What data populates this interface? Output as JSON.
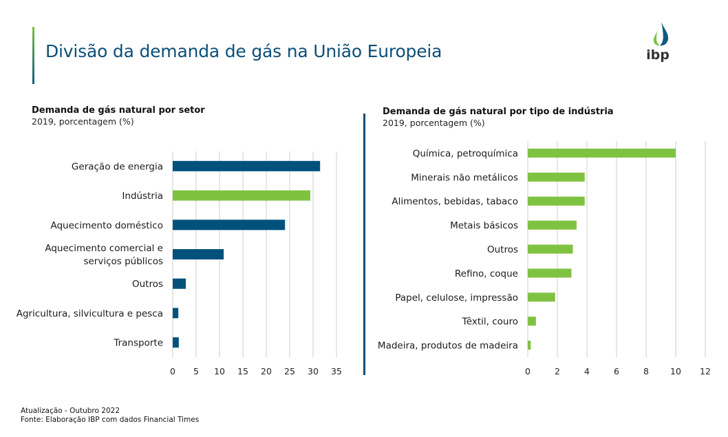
{
  "header": {
    "title": "Divisão da demanda de gás na União Europeia",
    "logo_text": "ibp"
  },
  "colors": {
    "dark_blue": "#00527c",
    "green": "#7fc242",
    "grid": "#d9d9d9",
    "title": "#0b4f78"
  },
  "footer": {
    "update": "Atualização - Outubro 2022",
    "source": "Fonte: Elaboração IBP com dados Financial Times"
  },
  "chart_data": [
    {
      "type": "bar",
      "orientation": "horizontal",
      "title": "Demanda de gás natural por setor",
      "subtitle": "2019, porcentagem (%)",
      "xlabel": "",
      "ylabel": "",
      "categories": [
        "Geração de energia",
        "Indústria",
        "Aquecimento doméstico",
        "Aquecimento comercial e serviços públicos",
        "Outros",
        "Agricultura, silvicultura e pesca",
        "Transporte"
      ],
      "category_lines": [
        [
          "Geração de energia"
        ],
        [
          "Indústria"
        ],
        [
          "Aquecimento doméstico"
        ],
        [
          "Aquecimento comercial e",
          "serviços públicos"
        ],
        [
          "Outros"
        ],
        [
          "Agricultura, silvicultura e pesca"
        ],
        [
          "Transporte"
        ]
      ],
      "values": [
        31.5,
        29.4,
        24.0,
        10.9,
        2.8,
        1.2,
        1.3
      ],
      "bar_colors": [
        "#00527c",
        "#7fc242",
        "#00527c",
        "#00527c",
        "#00527c",
        "#00527c",
        "#00527c"
      ],
      "xlim": [
        0,
        35
      ],
      "xticks": [
        0,
        5,
        10,
        15,
        20,
        25,
        30,
        35
      ],
      "grid": true,
      "legend": "none"
    },
    {
      "type": "bar",
      "orientation": "horizontal",
      "title": "Demanda de gás natural por tipo de indústria",
      "subtitle": "2019, porcentagem (%)",
      "xlabel": "",
      "ylabel": "",
      "categories": [
        "Química, petroquímica",
        "Minerais não metálicos",
        "Alimentos, bebidas, tabaco",
        "Metais básicos",
        "Outros",
        "Refino, coque",
        "Papel, celulose, impressão",
        "Têxtil, couro",
        "Madeira, produtos de madeira"
      ],
      "category_lines": [
        [
          "Química, petroquímica"
        ],
        [
          "Minerais não metálicos"
        ],
        [
          "Alimentos, bebidas, tabaco"
        ],
        [
          "Metais básicos"
        ],
        [
          "Outros"
        ],
        [
          "Refino, coque"
        ],
        [
          "Papel, celulose, impressão"
        ],
        [
          "Têxtil, couro"
        ],
        [
          "Madeira, produtos de madeira"
        ]
      ],
      "values": [
        10.0,
        3.85,
        3.85,
        3.3,
        3.05,
        2.95,
        1.85,
        0.55,
        0.2
      ],
      "bar_colors": [
        "#7fc242",
        "#7fc242",
        "#7fc242",
        "#7fc242",
        "#7fc242",
        "#7fc242",
        "#7fc242",
        "#7fc242",
        "#7fc242"
      ],
      "xlim": [
        0,
        12
      ],
      "xticks": [
        0,
        2,
        4,
        6,
        8,
        10,
        12
      ],
      "grid": true,
      "legend": "none"
    }
  ]
}
